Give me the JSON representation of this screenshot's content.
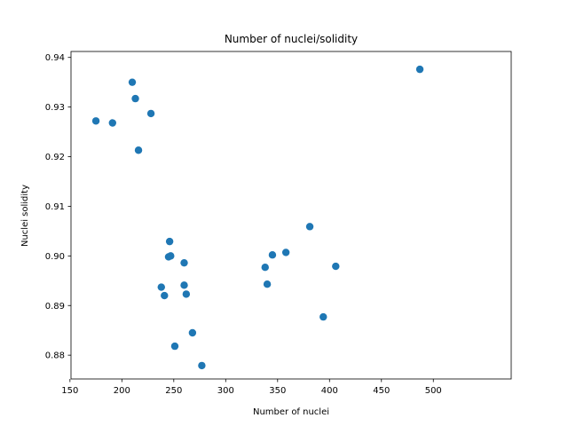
{
  "chart_data": {
    "type": "scatter",
    "title": "Number of nuclei/solidity",
    "xlabel": "Number of nuclei",
    "ylabel": "Nuclei solidity",
    "xlim": [
      151,
      575
    ],
    "ylim": [
      0.8752,
      0.9412
    ],
    "xticks": [
      150,
      200,
      250,
      300,
      350,
      400,
      450,
      500
    ],
    "yticks": [
      0.88,
      0.89,
      0.9,
      0.91,
      0.92,
      0.93,
      0.94
    ],
    "ytick_labels": [
      "0.88",
      "0.89",
      "0.90",
      "0.91",
      "0.92",
      "0.93",
      "0.94"
    ],
    "grid": false,
    "marker_color": "#1f77b4",
    "points": [
      {
        "x": 175,
        "y": 0.9272
      },
      {
        "x": 191,
        "y": 0.9268
      },
      {
        "x": 210,
        "y": 0.935
      },
      {
        "x": 213,
        "y": 0.9317
      },
      {
        "x": 216,
        "y": 0.9213
      },
      {
        "x": 228,
        "y": 0.9287
      },
      {
        "x": 238,
        "y": 0.8937
      },
      {
        "x": 241,
        "y": 0.892
      },
      {
        "x": 245,
        "y": 0.8998
      },
      {
        "x": 246,
        "y": 0.9029
      },
      {
        "x": 247,
        "y": 0.9
      },
      {
        "x": 251,
        "y": 0.8818
      },
      {
        "x": 260,
        "y": 0.8986
      },
      {
        "x": 260,
        "y": 0.8941
      },
      {
        "x": 262,
        "y": 0.8923
      },
      {
        "x": 268,
        "y": 0.8845
      },
      {
        "x": 277,
        "y": 0.8779
      },
      {
        "x": 338,
        "y": 0.8977
      },
      {
        "x": 340,
        "y": 0.8943
      },
      {
        "x": 345,
        "y": 0.9002
      },
      {
        "x": 358,
        "y": 0.9007
      },
      {
        "x": 381,
        "y": 0.9059
      },
      {
        "x": 394,
        "y": 0.8877
      },
      {
        "x": 406,
        "y": 0.8979
      },
      {
        "x": 487,
        "y": 0.9376
      }
    ]
  }
}
